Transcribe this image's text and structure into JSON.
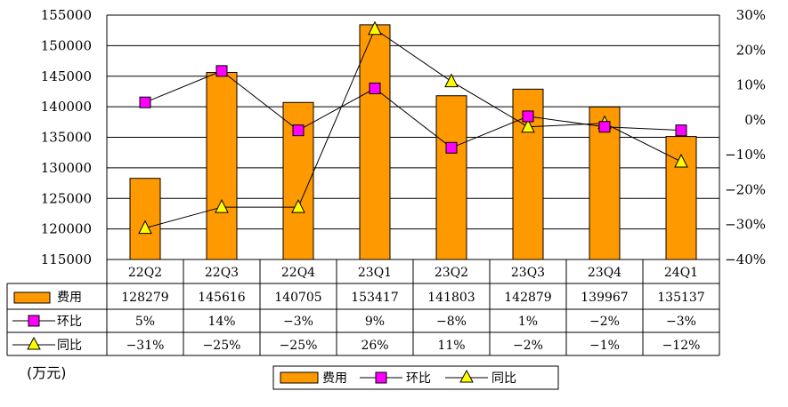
{
  "chart_data": {
    "type": "bar",
    "categories": [
      "22Q2",
      "22Q3",
      "22Q4",
      "23Q1",
      "23Q2",
      "23Q3",
      "23Q4",
      "24Q1"
    ],
    "series": [
      {
        "name": "费用",
        "kind": "bar",
        "axis": "left",
        "color": "#FF9900",
        "values": [
          128279,
          145616,
          140705,
          153417,
          141803,
          142879,
          139967,
          135137
        ],
        "labels": [
          "128279",
          "145616",
          "140705",
          "153417",
          "141803",
          "142879",
          "139967",
          "135137"
        ]
      },
      {
        "name": "环比",
        "kind": "line",
        "axis": "right",
        "marker": "square",
        "color": "#FF00FF",
        "values": [
          5,
          14,
          -3,
          9,
          -8,
          1,
          -2,
          -3
        ],
        "labels": [
          "5%",
          "14%",
          "−3%",
          "9%",
          "−8%",
          "1%",
          "−2%",
          "−3%"
        ]
      },
      {
        "name": "同比",
        "kind": "line",
        "axis": "right",
        "marker": "triangle",
        "color": "#FFFF00",
        "values": [
          -31,
          -25,
          -25,
          26,
          11,
          -2,
          -1,
          -12
        ],
        "labels": [
          "−31%",
          "−25%",
          "−25%",
          "26%",
          "11%",
          "−2%",
          "−1%",
          "−12%"
        ]
      }
    ],
    "y_left": {
      "min": 115000,
      "max": 155000,
      "step": 5000
    },
    "y_right": {
      "min": -40,
      "max": 30,
      "step": 10
    },
    "y_left_ticks": [
      "115000",
      "120000",
      "125000",
      "130000",
      "135000",
      "140000",
      "145000",
      "150000",
      "155000"
    ],
    "y_right_ticks": [
      "−40%",
      "−30%",
      "−20%",
      "−10%",
      "0%",
      "10%",
      "20%",
      "30%"
    ],
    "unit_label": "(万元)",
    "legend_position": "bottom-center",
    "grid": true
  }
}
